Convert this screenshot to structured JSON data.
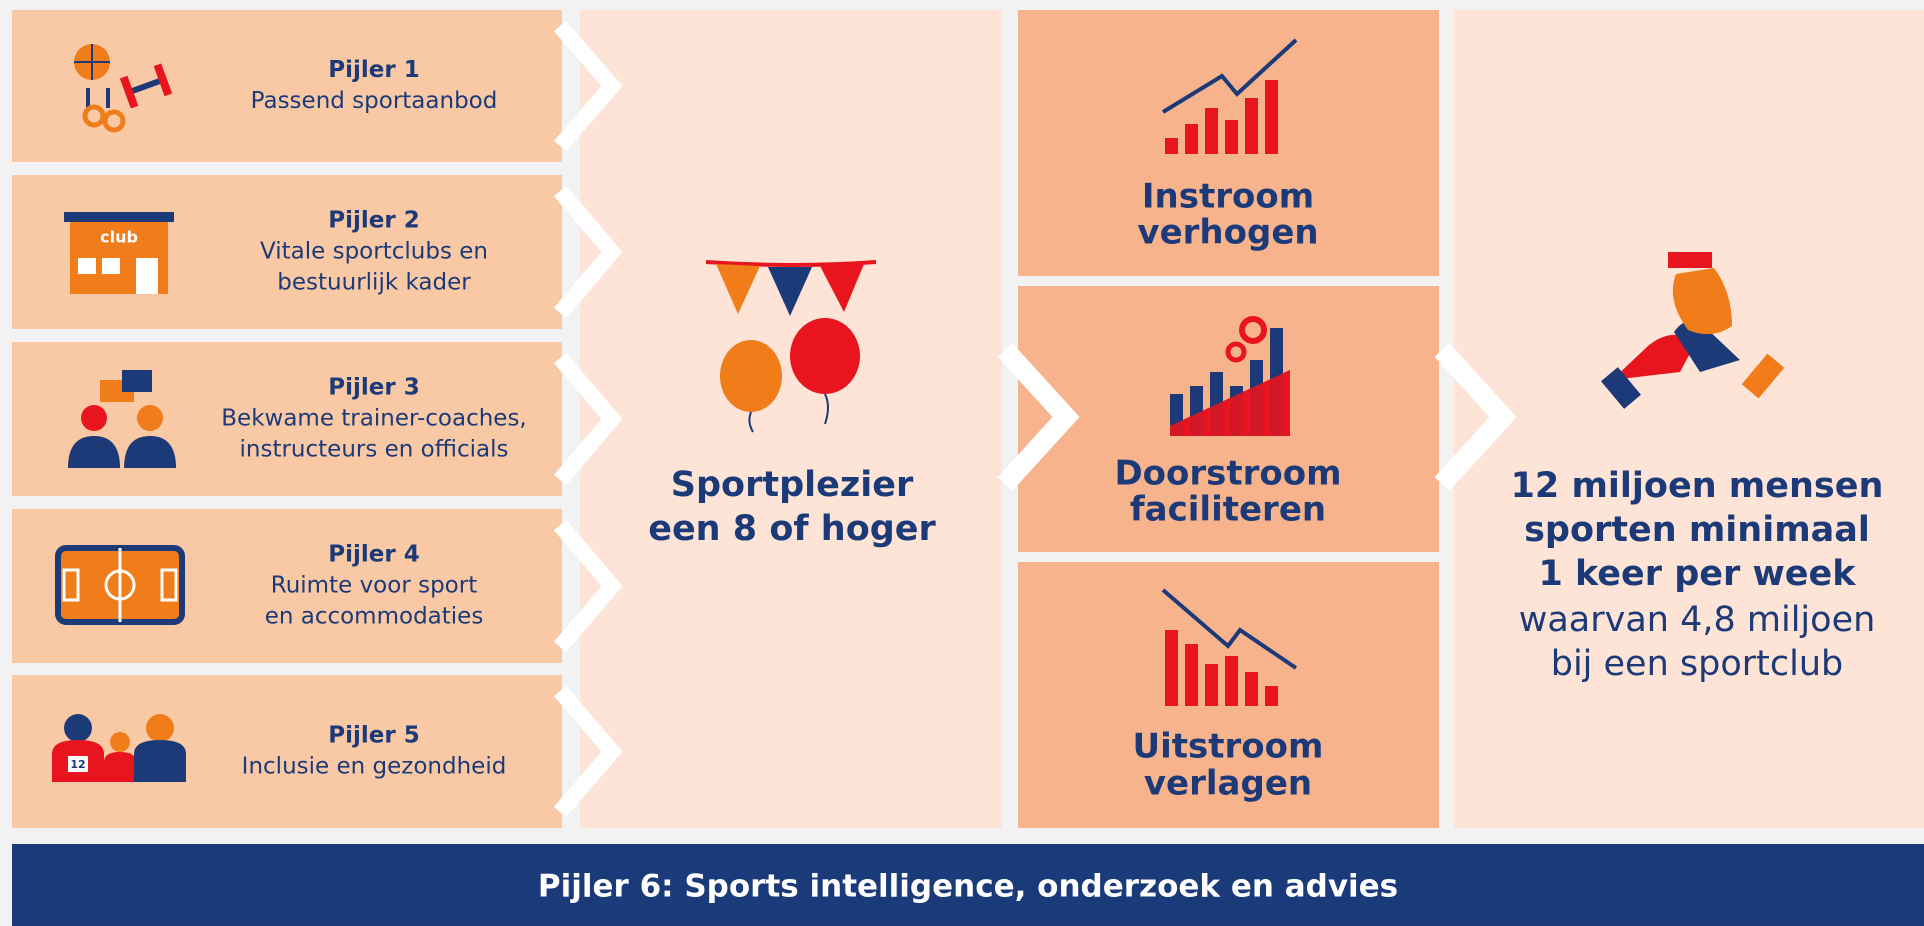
{
  "pillars": [
    {
      "title": "Pijler 1",
      "lines": [
        "Passend sportaanbod"
      ]
    },
    {
      "title": "Pijler 2",
      "lines": [
        "Vitale sportclubs en",
        "bestuurlijk kader"
      ]
    },
    {
      "title": "Pijler 3",
      "lines": [
        "Bekwame trainer-coaches,",
        "instructeurs en officials"
      ]
    },
    {
      "title": "Pijler 4",
      "lines": [
        "Ruimte voor sport",
        "en accommodaties"
      ]
    },
    {
      "title": "Pijler 5",
      "lines": [
        "Inclusie en gezondheid"
      ]
    }
  ],
  "club_sign": "club",
  "jersey_number": "12",
  "center": {
    "lines": [
      "Sportplezier",
      "een 8 of hoger"
    ]
  },
  "flows": [
    {
      "lines": [
        "Instroom",
        "verhogen"
      ]
    },
    {
      "lines": [
        "Doorstroom",
        "faciliteren"
      ]
    },
    {
      "lines": [
        "Uitstroom",
        "verlagen"
      ]
    }
  ],
  "result": {
    "bold_lines": [
      "12 miljoen mensen",
      "sporten minimaal",
      "1 keer per week"
    ],
    "lines": [
      "waarvan 4,8 miljoen",
      "bij een sportclub"
    ]
  },
  "footer": "Pijler 6: Sports intelligence, onderzoek en advies"
}
